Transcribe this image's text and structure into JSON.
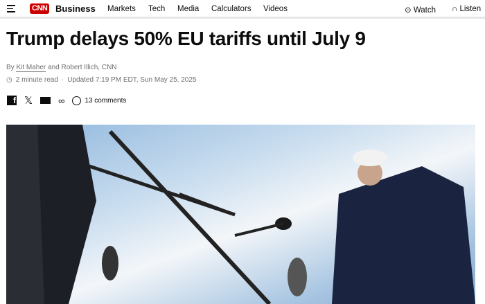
{
  "header": {
    "logo": "CNN",
    "section": "Business",
    "nav": [
      "Markets",
      "Tech",
      "Media",
      "Calculators",
      "Videos"
    ],
    "watch": "Watch",
    "listen": "Listen"
  },
  "article": {
    "title": "Trump delays 50% EU tariffs until July 9",
    "byline_prefix": "By",
    "author1": "Kit Maher",
    "byline_mid": "and Robert Illich, CNN",
    "read_time": "2 minute read",
    "updated": "Updated 7:19 PM EDT, Sun May 25, 2025",
    "comments": "13 comments"
  },
  "colors": {
    "brand": "#cc0000"
  }
}
